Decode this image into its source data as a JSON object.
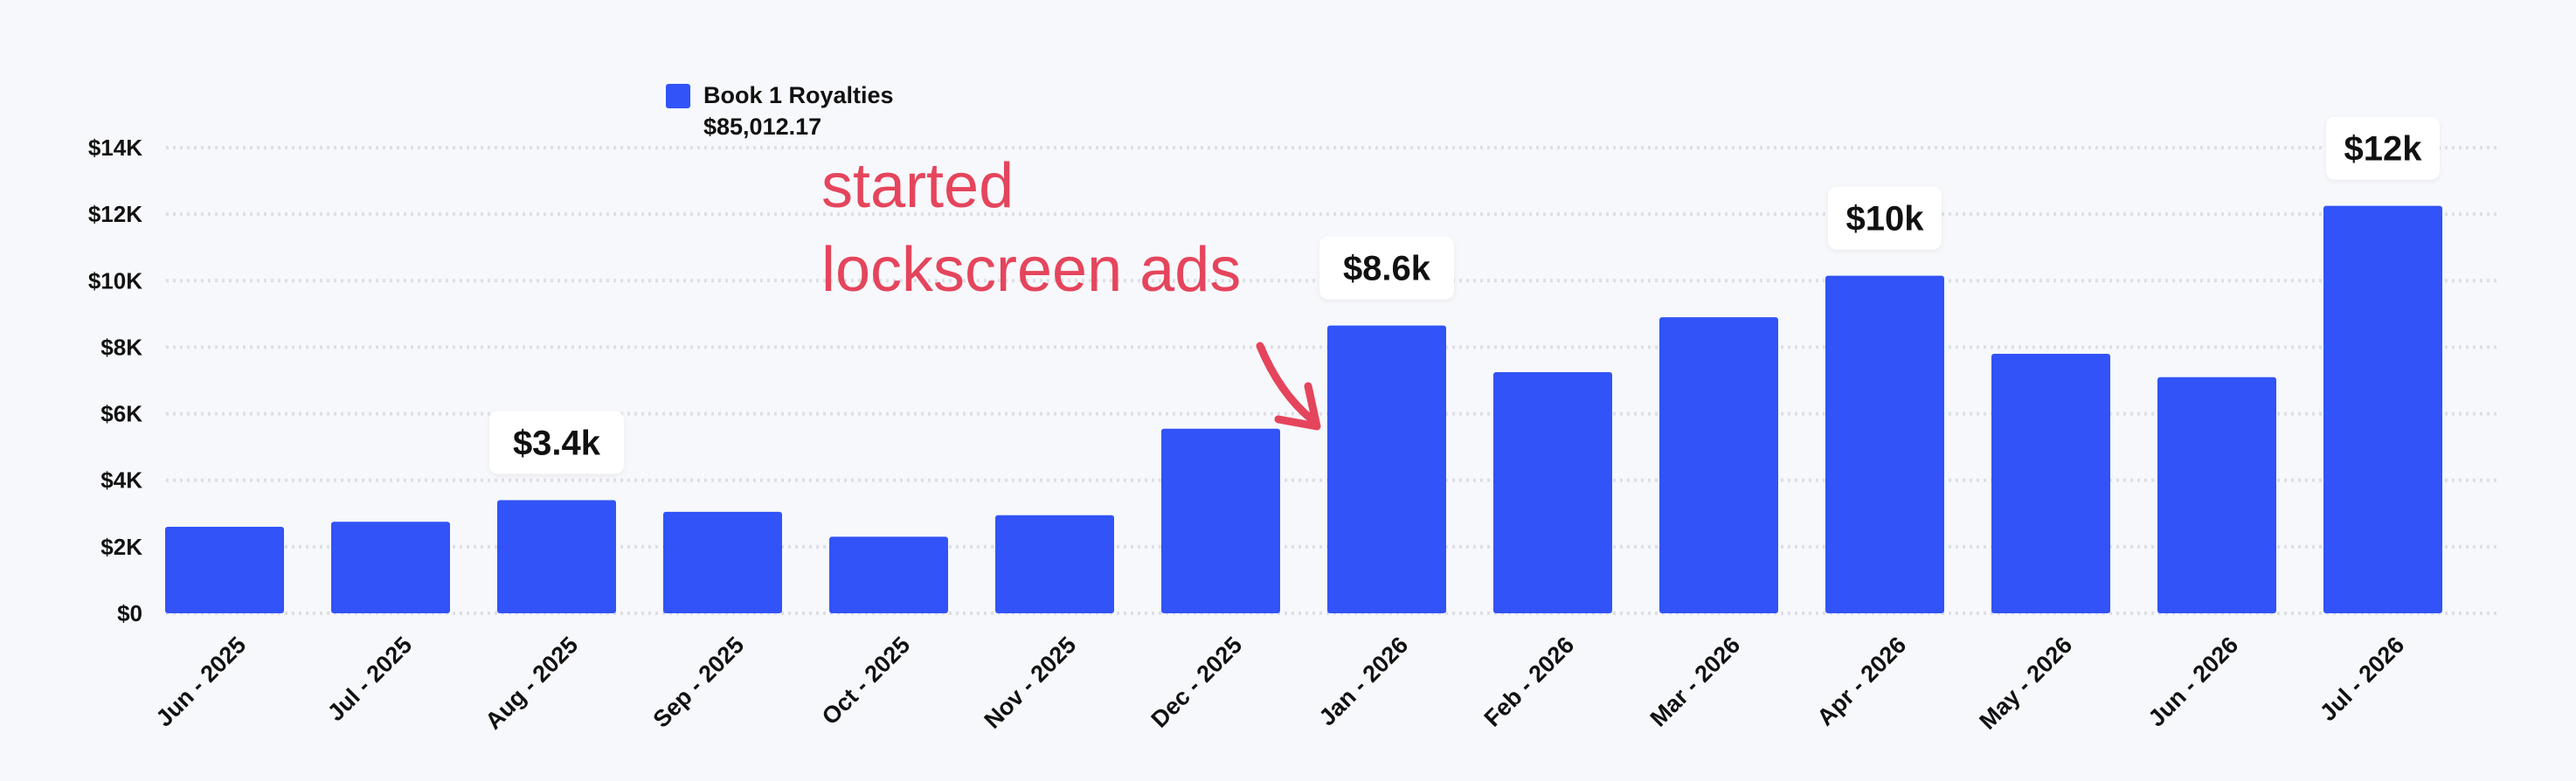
{
  "colors": {
    "bar": "#3153f7",
    "annotation": "#e5455c",
    "grid": "#dcdfe6",
    "background": "#f7f8fb"
  },
  "chart_data": {
    "type": "bar",
    "categories": [
      "Jun - 2025",
      "Jul - 2025",
      "Aug - 2025",
      "Sep - 2025",
      "Oct - 2025",
      "Nov - 2025",
      "Dec - 2025",
      "Jan - 2026",
      "Feb - 2026",
      "Mar - 2026",
      "Apr - 2026",
      "May - 2026",
      "Jun - 2026",
      "Jul - 2026"
    ],
    "series": [
      {
        "name": "Book 1 Royalties",
        "total": "$85,012.17",
        "values": [
          2600,
          2750,
          3400,
          3050,
          2300,
          2950,
          5550,
          8650,
          7250,
          8900,
          10150,
          7800,
          7100,
          12250
        ]
      }
    ],
    "y_ticks": [
      "$0",
      "$2K",
      "$4K",
      "$6K",
      "$8K",
      "$10K",
      "$12K",
      "$14K"
    ],
    "ylim": [
      0,
      14000
    ],
    "grid": true,
    "grid_style": "dotted",
    "legend_position": "top-left",
    "callouts": [
      {
        "category": "Aug - 2025",
        "label": "$3.4k"
      },
      {
        "category": "Jan - 2026",
        "label": "$8.6k"
      },
      {
        "category": "Apr - 2026",
        "label": "$10k"
      },
      {
        "category": "Jul - 2026",
        "label": "$12k"
      }
    ],
    "annotation": {
      "lines": [
        "started",
        "lockscreen ads"
      ],
      "target_category": "Jan - 2026"
    }
  }
}
